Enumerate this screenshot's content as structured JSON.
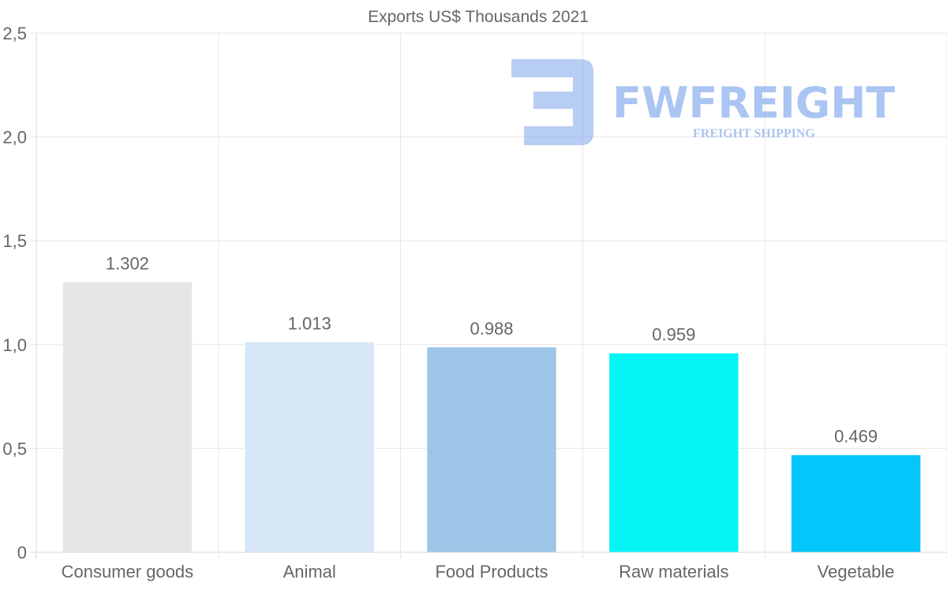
{
  "chart_data": {
    "type": "bar",
    "title": "Exports US$ Thousands 2021",
    "categories": [
      "Consumer goods",
      "Animal",
      "Food Products",
      "Raw materials",
      "Vegetable"
    ],
    "values": [
      1.302,
      1.013,
      0.988,
      0.959,
      0.469
    ],
    "data_labels": [
      "1.302",
      "1.013",
      "0.988",
      "0.959",
      "0.469"
    ],
    "bar_colors": [
      "#e6e6e6",
      "#d7e7f8",
      "#9dc5e7",
      "#05f5f7",
      "#03c7fb"
    ],
    "ylim": [
      0,
      2.5
    ],
    "yticks": [
      0,
      0.5,
      1.0,
      1.5,
      2.0,
      2.5
    ],
    "ytick_labels": [
      "0",
      "0,5",
      "1,0",
      "1,5",
      "2,0",
      "2,5"
    ],
    "xlabel": "",
    "ylabel": "",
    "grid": true,
    "legend": "none"
  },
  "watermark": {
    "name": "FWFREIGHT",
    "tagline": "FREIGHT SHIPPING",
    "color": "#8eb2ee"
  },
  "colors": {
    "grid": "#e6e6e6",
    "text": "#666666"
  }
}
